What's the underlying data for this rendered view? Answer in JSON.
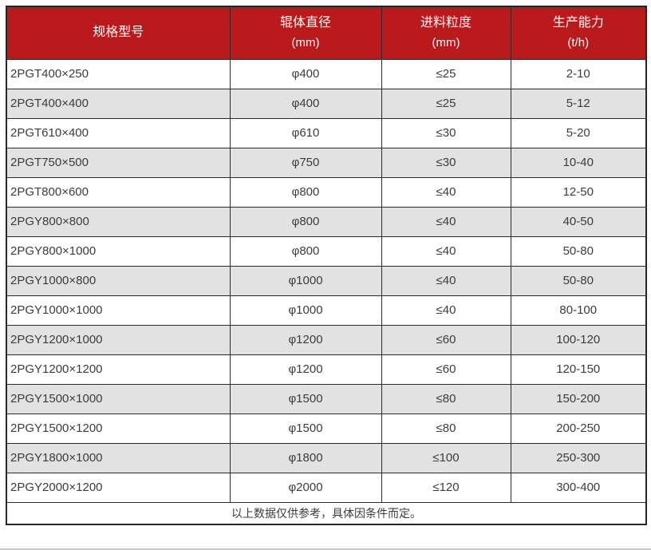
{
  "chart_data": {
    "type": "table",
    "columns": [
      {
        "label": "规格型号",
        "unit": ""
      },
      {
        "label": "辊体直径",
        "unit": "(mm)"
      },
      {
        "label": "进料粒度",
        "unit": "(mm)"
      },
      {
        "label": "生产能力",
        "unit": "(t/h)"
      }
    ],
    "rows": [
      [
        "2PGT400×250",
        "φ400",
        "≤25",
        "2-10"
      ],
      [
        "2PGT400×400",
        "φ400",
        "≤25",
        "5-12"
      ],
      [
        "2PGT610×400",
        "φ610",
        "≤30",
        "5-20"
      ],
      [
        "2PGT750×500",
        "φ750",
        "≤30",
        "10-40"
      ],
      [
        "2PGT800×600",
        "φ800",
        "≤40",
        "12-50"
      ],
      [
        "2PGY800×800",
        "φ800",
        "≤40",
        "40-50"
      ],
      [
        "2PGY800×1000",
        "φ800",
        "≤40",
        "50-80"
      ],
      [
        "2PGY1000×800",
        "φ1000",
        "≤40",
        "50-80"
      ],
      [
        "2PGY1000×1000",
        "φ1000",
        "≤40",
        "80-100"
      ],
      [
        "2PGY1200×1000",
        "φ1200",
        "≤60",
        "100-120"
      ],
      [
        "2PGY1200×1200",
        "φ1200",
        "≤60",
        "120-150"
      ],
      [
        "2PGY1500×1000",
        "φ1500",
        "≤80",
        "150-200"
      ],
      [
        "2PGY1500×1200",
        "φ1500",
        "≤80",
        "200-250"
      ],
      [
        "2PGY1800×1000",
        "φ1800",
        "≤100",
        "250-300"
      ],
      [
        "2PGY2000×1200",
        "φ2000",
        "≤120",
        "300-400"
      ]
    ],
    "footer_note": "以上数据仅供参考，具体因条件而定。",
    "layout": {
      "grid": "on",
      "alternating_rows": true
    }
  },
  "colors": {
    "header_bg": "#bb1a1d",
    "header_text": "#ffffff",
    "row_alt_bg": "#e2e2e2",
    "border": "#2b2b2b",
    "text": "#3c3c3c",
    "bottom_line": "#c9c9c9"
  }
}
